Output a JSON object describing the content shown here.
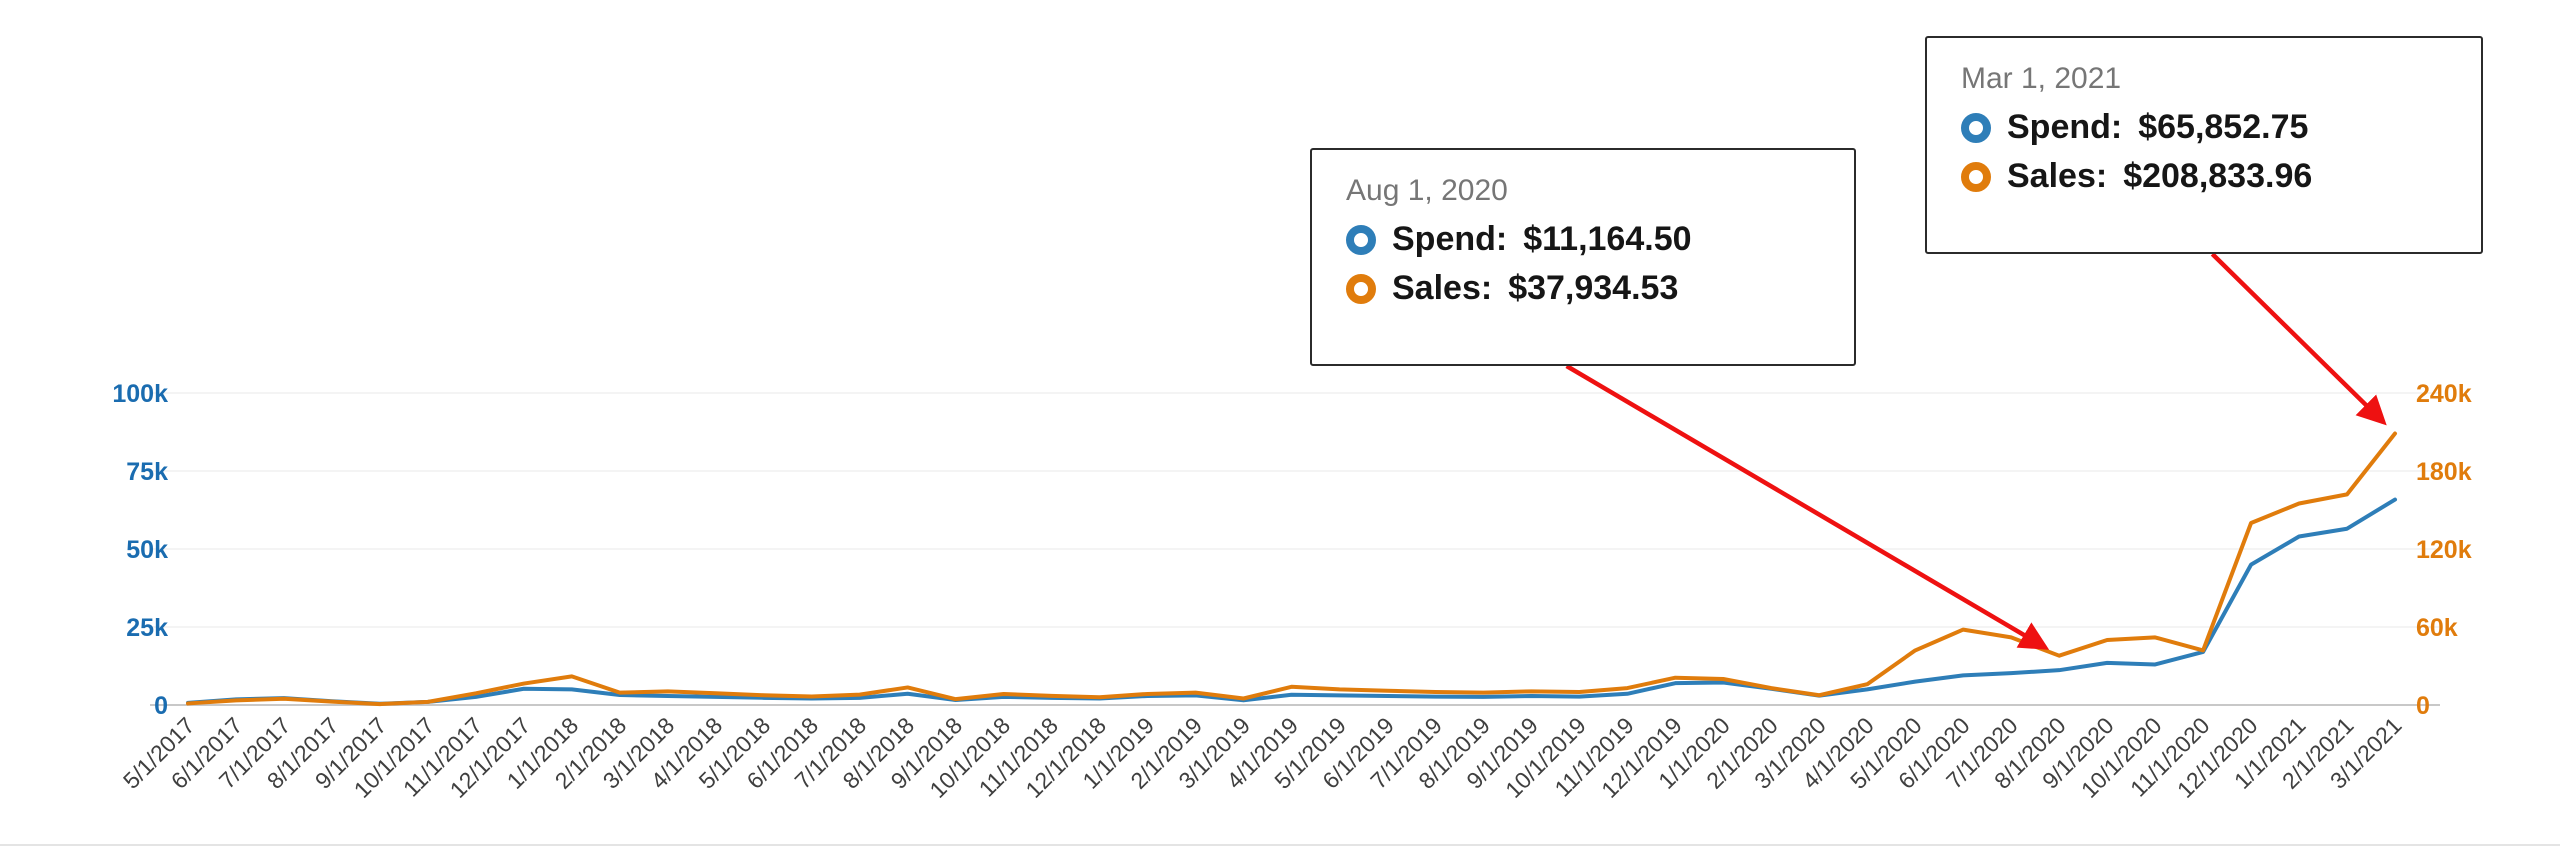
{
  "chart_data": {
    "type": "line",
    "title": "",
    "xlabel": "",
    "ylabel_left": "Spend",
    "ylabel_right": "Sales",
    "grid": true,
    "legend_position": "none",
    "annotation_color": "#ee1111",
    "categories": [
      "5/1/2017",
      "6/1/2017",
      "7/1/2017",
      "8/1/2017",
      "9/1/2017",
      "10/1/2017",
      "11/1/2017",
      "12/1/2017",
      "1/1/2018",
      "2/1/2018",
      "3/1/2018",
      "4/1/2018",
      "5/1/2018",
      "6/1/2018",
      "7/1/2018",
      "8/1/2018",
      "9/1/2018",
      "10/1/2018",
      "11/1/2018",
      "12/1/2018",
      "1/1/2019",
      "2/1/2019",
      "3/1/2019",
      "4/1/2019",
      "5/1/2019",
      "6/1/2019",
      "7/1/2019",
      "8/1/2019",
      "9/1/2019",
      "10/1/2019",
      "11/1/2019",
      "12/1/2019",
      "1/1/2020",
      "2/1/2020",
      "3/1/2020",
      "4/1/2020",
      "5/1/2020",
      "6/1/2020",
      "7/1/2020",
      "8/1/2020",
      "9/1/2020",
      "10/1/2020",
      "11/1/2020",
      "12/1/2020",
      "1/1/2021",
      "2/1/2021",
      "3/1/2021"
    ],
    "series": [
      {
        "name": "Spend",
        "axis": "left",
        "color": "#2e7eb8",
        "values": [
          700,
          1800,
          2200,
          1200,
          400,
          1000,
          2600,
          5200,
          5000,
          3200,
          2900,
          2600,
          2300,
          2100,
          2300,
          3600,
          1600,
          2600,
          2300,
          2100,
          2900,
          3100,
          1500,
          3300,
          3100,
          2900,
          2700,
          2600,
          2900,
          2700,
          3600,
          7000,
          7200,
          5200,
          3000,
          5000,
          7500,
          9500,
          10200,
          11164.5,
          13500,
          13000,
          17000,
          45000,
          54000,
          56500,
          65852.75
        ]
      },
      {
        "name": "Sales",
        "axis": "right",
        "color": "#e07c0c",
        "values": [
          1200,
          3600,
          4800,
          2600,
          700,
          2400,
          9000,
          16500,
          22000,
          9500,
          10500,
          9000,
          7500,
          6500,
          8000,
          13500,
          4500,
          8500,
          7000,
          6000,
          8500,
          9500,
          5000,
          14000,
          12000,
          11000,
          10000,
          9500,
          10500,
          10000,
          13000,
          21000,
          20000,
          13000,
          7500,
          16000,
          42000,
          58000,
          52000,
          37934.53,
          50000,
          52000,
          42000,
          140000,
          155000,
          162000,
          208833.96
        ]
      }
    ],
    "left_axis": {
      "max": 100000,
      "ticks": [
        0,
        25000,
        50000,
        75000,
        100000
      ],
      "labels": [
        "0",
        "25k",
        "50k",
        "75k",
        "100k"
      ],
      "color": "#1a6cb0"
    },
    "right_axis": {
      "max": 240000,
      "ticks": [
        0,
        60000,
        120000,
        180000,
        240000
      ],
      "labels": [
        "0",
        "60k",
        "120k",
        "180k",
        "240k"
      ],
      "color": "#e07c0c"
    },
    "x_label_color": "#3f3f3f"
  },
  "tooltips": [
    {
      "date": "Aug 1, 2020",
      "spend_label": "Spend:",
      "spend_value": "$11,164.50",
      "sales_label": "Sales:",
      "sales_value": "$37,934.53",
      "points_to": {
        "category": "8/1/2020",
        "series": "Sales"
      }
    },
    {
      "date": "Mar 1, 2021",
      "spend_label": "Spend:",
      "spend_value": "$65,852.75",
      "sales_label": "Sales:",
      "sales_value": "$208,833.96",
      "points_to": {
        "category": "3/1/2021",
        "series": "Sales"
      }
    }
  ]
}
